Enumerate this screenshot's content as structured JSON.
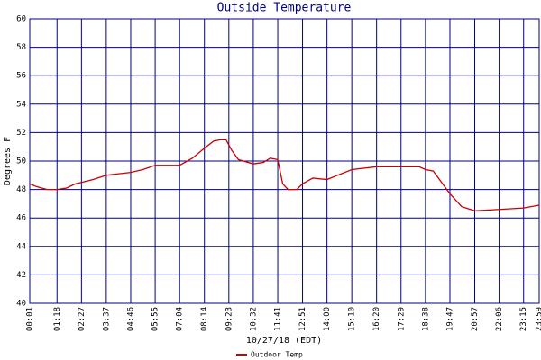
{
  "chart_data": {
    "type": "line",
    "title": "Outside Temperature",
    "x_label": "10/27/18 (EDT)",
    "y_label": "Degrees F",
    "x": [
      "00:01",
      "00:20",
      "00:50",
      "01:18",
      "01:45",
      "02:10",
      "02:27",
      "03:00",
      "03:37",
      "04:10",
      "04:46",
      "05:20",
      "05:55",
      "06:30",
      "07:04",
      "07:40",
      "08:14",
      "08:40",
      "09:00",
      "09:15",
      "09:30",
      "09:50",
      "10:32",
      "11:00",
      "11:20",
      "11:41",
      "11:55",
      "12:10",
      "12:35",
      "12:51",
      "13:20",
      "14:00",
      "14:30",
      "15:10",
      "16:20",
      "17:29",
      "18:20",
      "18:38",
      "19:00",
      "19:47",
      "20:20",
      "20:57",
      "22:06",
      "23:15",
      "23:59"
    ],
    "series": [
      {
        "name": "Outdoor Temp",
        "color": "#cc0000",
        "values": [
          48.4,
          48.2,
          48.0,
          48.0,
          48.1,
          48.4,
          48.5,
          48.7,
          49.0,
          49.1,
          49.2,
          49.4,
          49.7,
          49.7,
          49.7,
          50.2,
          50.9,
          51.4,
          51.5,
          51.5,
          50.8,
          50.1,
          49.8,
          49.9,
          50.2,
          50.1,
          48.4,
          48.0,
          48.0,
          48.4,
          48.8,
          48.7,
          49.0,
          49.4,
          49.6,
          49.6,
          49.6,
          49.4,
          49.3,
          47.7,
          46.8,
          46.5,
          46.6,
          46.7,
          46.9
        ]
      }
    ],
    "xticks": [
      "00:01",
      "01:18",
      "02:27",
      "03:37",
      "04:46",
      "05:55",
      "07:04",
      "08:14",
      "09:23",
      "10:32",
      "11:41",
      "12:51",
      "14:00",
      "15:10",
      "16:20",
      "17:29",
      "18:38",
      "19:47",
      "20:57",
      "22:06",
      "23:15",
      "23:59"
    ],
    "ylim": [
      40,
      60
    ],
    "yticks": [
      40,
      42,
      44,
      46,
      48,
      50,
      52,
      54,
      56,
      58,
      60
    ],
    "grid": true,
    "grid_color": "#000080",
    "legend": "bottom"
  }
}
